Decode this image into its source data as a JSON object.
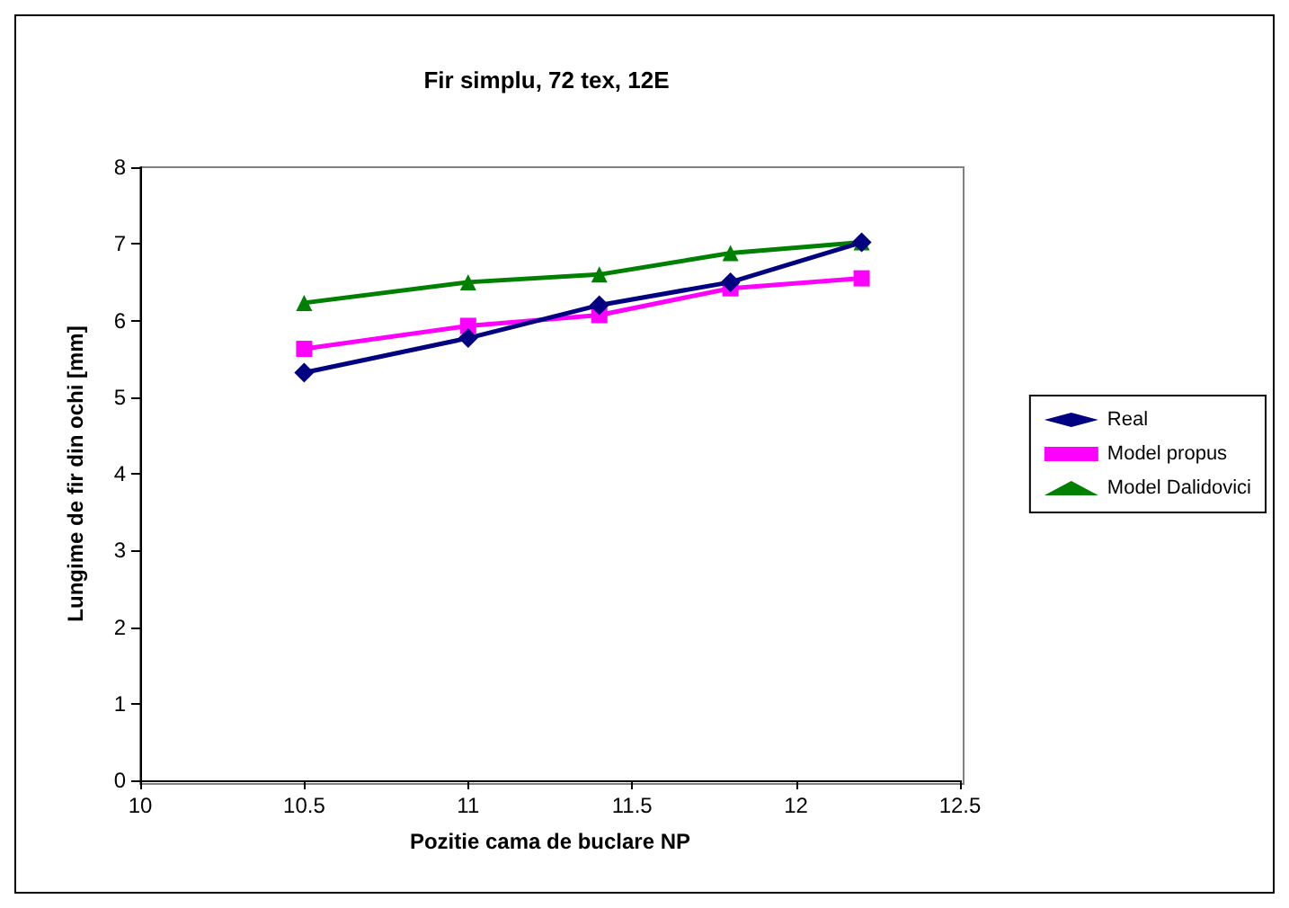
{
  "chart_data": {
    "type": "line",
    "title": "Fir simplu, 72 tex, 12E",
    "xlabel": "Pozitie cama de buclare NP",
    "ylabel": "Lungime de fir din ochi [mm]",
    "x": [
      10.5,
      11,
      11.4,
      11.8,
      12.2
    ],
    "series": [
      {
        "name": "Real",
        "color": "#000080",
        "marker": "diamond",
        "values": [
          5.32,
          5.77,
          6.2,
          6.5,
          7.02
        ]
      },
      {
        "name": "Model propus",
        "color": "#ff00ff",
        "marker": "square",
        "values": [
          5.63,
          5.93,
          6.07,
          6.42,
          6.55
        ]
      },
      {
        "name": "Model Dalidovici",
        "color": "#008000",
        "marker": "triangle",
        "values": [
          6.23,
          6.5,
          6.6,
          6.88,
          7.02
        ]
      }
    ],
    "xlim": [
      10,
      12.5
    ],
    "xticks": [
      10,
      10.5,
      11,
      11.5,
      12,
      12.5
    ],
    "ylim": [
      0,
      8
    ],
    "yticks": [
      0,
      1,
      2,
      3,
      4,
      5,
      6,
      7,
      8
    ],
    "grid": false,
    "legend": "right"
  }
}
